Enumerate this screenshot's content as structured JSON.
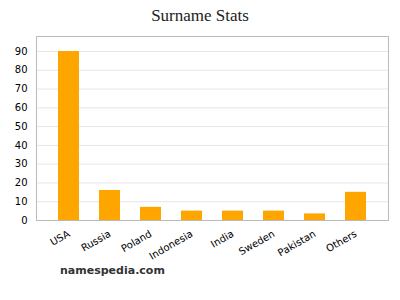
{
  "chart_data": {
    "type": "bar",
    "title": "Surname Stats",
    "categories": [
      "USA",
      "Russia",
      "Poland",
      "Indonesia",
      "India",
      "Sweden",
      "Pakistan",
      "Others"
    ],
    "values": [
      90,
      16,
      7,
      5,
      5,
      5,
      3.5,
      15
    ],
    "color": "#FFA500",
    "ylim": [
      0,
      98
    ],
    "yticks": [
      0,
      10,
      20,
      30,
      40,
      50,
      60,
      70,
      80,
      90
    ],
    "grid": true,
    "caption": "namespedia.com"
  }
}
